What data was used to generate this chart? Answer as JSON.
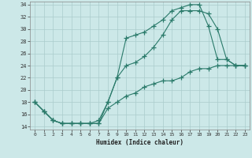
{
  "xlabel": "Humidex (Indice chaleur)",
  "bg_color": "#cce8e8",
  "grid_color": "#aacccc",
  "line_color": "#2a7a6a",
  "xlim": [
    -0.5,
    23.5
  ],
  "ylim": [
    13.5,
    34.5
  ],
  "xticks": [
    0,
    1,
    2,
    3,
    4,
    5,
    6,
    7,
    8,
    9,
    10,
    11,
    12,
    13,
    14,
    15,
    16,
    17,
    18,
    19,
    20,
    21,
    22,
    23
  ],
  "yticks": [
    14,
    16,
    18,
    20,
    22,
    24,
    26,
    28,
    30,
    32,
    34
  ],
  "line1_x": [
    0,
    1,
    2,
    3,
    4,
    5,
    6,
    7,
    8,
    9,
    10,
    11,
    12,
    13,
    14,
    15,
    16,
    17,
    18,
    19,
    20,
    21,
    22,
    23
  ],
  "line1_y": [
    18,
    16.5,
    15,
    14.5,
    14.5,
    14.5,
    14.5,
    15,
    18,
    22,
    28.5,
    29,
    29.5,
    30.5,
    31.5,
    33,
    33.5,
    34,
    34,
    30.5,
    25,
    25,
    24,
    24
  ],
  "line2_x": [
    0,
    1,
    2,
    3,
    4,
    5,
    6,
    7,
    8,
    9,
    10,
    11,
    12,
    13,
    14,
    15,
    16,
    17,
    18,
    19,
    20,
    21,
    22,
    23
  ],
  "line2_y": [
    18,
    16.5,
    15,
    14.5,
    14.5,
    14.5,
    14.5,
    14.5,
    18,
    22,
    24,
    24.5,
    25.5,
    27,
    29,
    31.5,
    33,
    33,
    33,
    32.5,
    30,
    25,
    24,
    24
  ],
  "line3_x": [
    0,
    1,
    2,
    3,
    4,
    5,
    6,
    7,
    8,
    9,
    10,
    11,
    12,
    13,
    14,
    15,
    16,
    17,
    18,
    19,
    20,
    21,
    22,
    23
  ],
  "line3_y": [
    18,
    16.5,
    15,
    14.5,
    14.5,
    14.5,
    14.5,
    14.5,
    17,
    18,
    19,
    19.5,
    20.5,
    21,
    21.5,
    21.5,
    22,
    23,
    23.5,
    23.5,
    24,
    24,
    24,
    24
  ]
}
